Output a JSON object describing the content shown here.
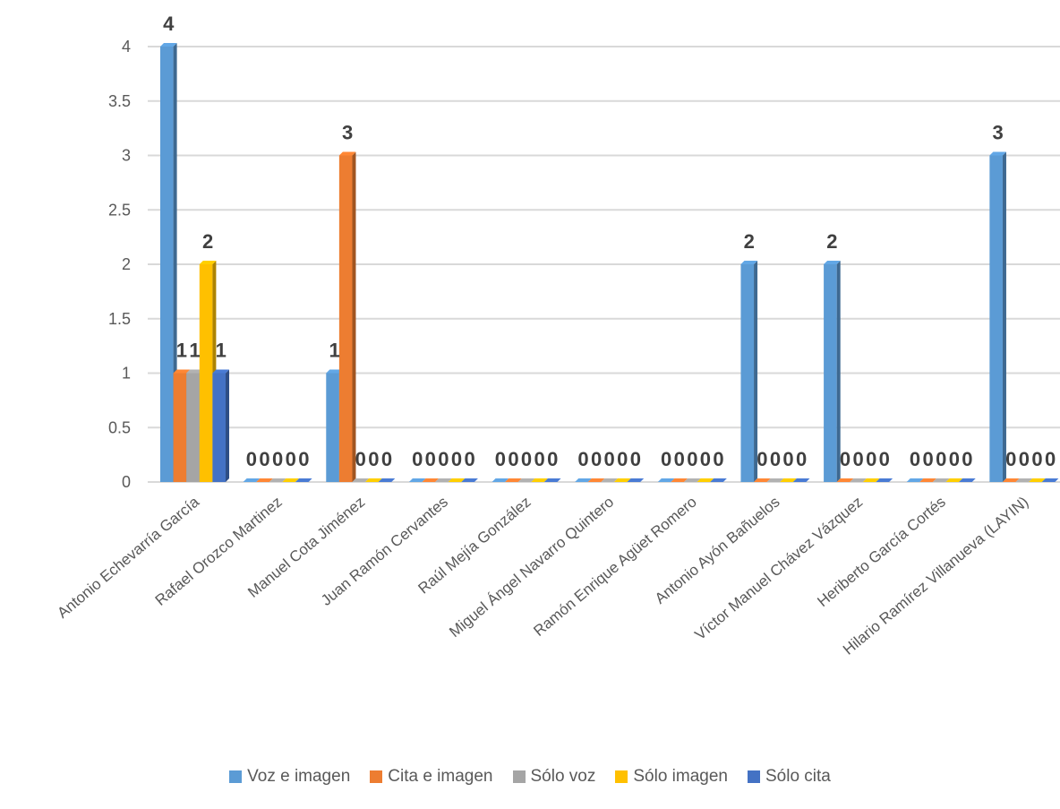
{
  "chart_data": {
    "type": "bar",
    "title": "",
    "xlabel": "",
    "ylabel": "",
    "ylim": [
      0,
      4
    ],
    "yticks": [
      "0",
      "0.5",
      "1",
      "1.5",
      "2",
      "2.5",
      "3",
      "3.5",
      "4"
    ],
    "grid": true,
    "legend_position": "bottom",
    "categories": [
      "Antonio Echevarría García",
      "Rafael Orozco Martinez",
      "Manuel Cota Jiménez",
      "Juan Ramón Cervantes",
      "Raúl Mejía González",
      "Miguel Ángel Navarro Quintero",
      "Ramón Enrique Agüet Romero",
      "Antonio Ayón Bañuelos",
      "Víctor Manuel Chávez Vázquez",
      "Heriberto García Cortés",
      "Hilario Ramírez Villanueva (LAYIN)"
    ],
    "series": [
      {
        "name": "Voz e imagen",
        "color": "#5B9BD5",
        "values": [
          4,
          0,
          1,
          0,
          0,
          0,
          0,
          2,
          2,
          0,
          3
        ]
      },
      {
        "name": "Cita e imagen",
        "color": "#ED7D31",
        "values": [
          1,
          0,
          3,
          0,
          0,
          0,
          0,
          0,
          0,
          0,
          0
        ]
      },
      {
        "name": "Sólo voz",
        "color": "#A5A5A5",
        "values": [
          1,
          0,
          0,
          0,
          0,
          0,
          0,
          0,
          0,
          0,
          0
        ]
      },
      {
        "name": "Sólo imagen",
        "color": "#FFC000",
        "values": [
          2,
          0,
          0,
          0,
          0,
          0,
          0,
          0,
          0,
          0,
          0
        ]
      },
      {
        "name": "Sólo cita",
        "color": "#4472C4",
        "values": [
          1,
          0,
          0,
          0,
          0,
          0,
          0,
          0,
          0,
          0,
          0
        ]
      }
    ],
    "data_labels": [
      [
        "4",
        "1",
        "1",
        "2",
        "1"
      ],
      [
        "0",
        "0",
        "0",
        "0",
        "0"
      ],
      [
        "1",
        "3",
        "0",
        "0",
        "0"
      ],
      [
        "0",
        "0",
        "0",
        "0",
        "0"
      ],
      [
        "0",
        "0",
        "0",
        "0",
        "0"
      ],
      [
        "0",
        "0",
        "0",
        "0",
        "0"
      ],
      [
        "0",
        "0",
        "0",
        "0",
        "0"
      ],
      [
        "2",
        "0",
        "0",
        "0",
        "0"
      ],
      [
        "2",
        "0",
        "0",
        "0",
        "0"
      ],
      [
        "0",
        "0",
        "0",
        "0",
        "0"
      ],
      [
        "3",
        "0",
        "0",
        "0",
        "0"
      ]
    ]
  }
}
